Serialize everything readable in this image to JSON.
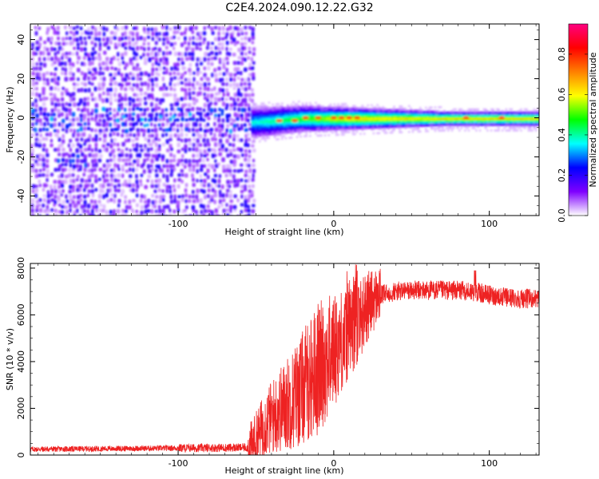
{
  "title": "C2E4.2024.090.12.22.G32",
  "chart_data": [
    {
      "type": "heatmap",
      "xlabel": "Height of straight line (km)",
      "ylabel": "Frequency (Hz)",
      "xlim": [
        -195,
        132
      ],
      "ylim": [
        -50,
        48
      ],
      "x_ticks": [
        -100,
        0,
        100
      ],
      "x_tick_labels": [
        "-100",
        "0",
        "100"
      ],
      "y_ticks": [
        40,
        20,
        0,
        -20,
        -40
      ],
      "y_tick_labels": [
        "40",
        "20",
        "0",
        "-20",
        "-40"
      ],
      "colorbar": {
        "label": "Normalized spectral amplitude",
        "range": [
          0,
          0.95
        ],
        "ticks": [
          0,
          0.2,
          0.4,
          0.6,
          0.8
        ],
        "tick_labels": [
          "0.0",
          "0.2",
          "0.4",
          "0.6",
          "0.8"
        ],
        "colormap": [
          "#ffffff",
          "#7f00ff",
          "#0000ff",
          "#00ffff",
          "#00ff00",
          "#ffff00",
          "#ff8000",
          "#ff0000",
          "#ff0080"
        ]
      },
      "regions": [
        {
          "x_range": [
            -195,
            -53
          ],
          "description_values": "broad noise, amplitude 0.0-0.25 across all frequencies"
        },
        {
          "x_range": [
            -53,
            132
          ],
          "center_freq_hz": 0,
          "band_halfwidth_hz": [
            6,
            2
          ],
          "peak_amplitude": 0.8
        }
      ],
      "grid": false,
      "legend": "colorbar-right"
    },
    {
      "type": "line",
      "xlabel": "Height of straight line (km)",
      "ylabel": "SNR (10 * v/v)",
      "xlim": [
        -195,
        132
      ],
      "ylim": [
        0,
        8200
      ],
      "x_ticks": [
        -100,
        0,
        100
      ],
      "x_tick_labels": [
        "-100",
        "0",
        "100"
      ],
      "y_ticks": [
        0,
        2000,
        4000,
        6000,
        8000
      ],
      "y_tick_labels": [
        "0",
        "2000",
        "4000",
        "6000",
        "8000"
      ],
      "color": "#ee2222",
      "series": [
        {
          "x": [
            -195,
            -150,
            -100,
            -55,
            -52,
            -48,
            -45,
            -40,
            -35,
            -30,
            -25,
            -20,
            -15,
            -10,
            -5,
            0,
            5,
            10,
            15,
            20,
            25,
            30,
            40,
            50,
            60,
            70,
            80,
            90,
            100,
            110,
            120,
            132
          ],
          "y": [
            250,
            270,
            300,
            320,
            500,
            900,
            1300,
            1600,
            1900,
            2200,
            2500,
            2900,
            3300,
            3700,
            4100,
            4500,
            4900,
            5200,
            5700,
            6200,
            6600,
            6850,
            7000,
            7050,
            7050,
            7050,
            7050,
            7000,
            6850,
            6750,
            6700,
            6700
          ]
        }
      ],
      "grid": false
    }
  ]
}
